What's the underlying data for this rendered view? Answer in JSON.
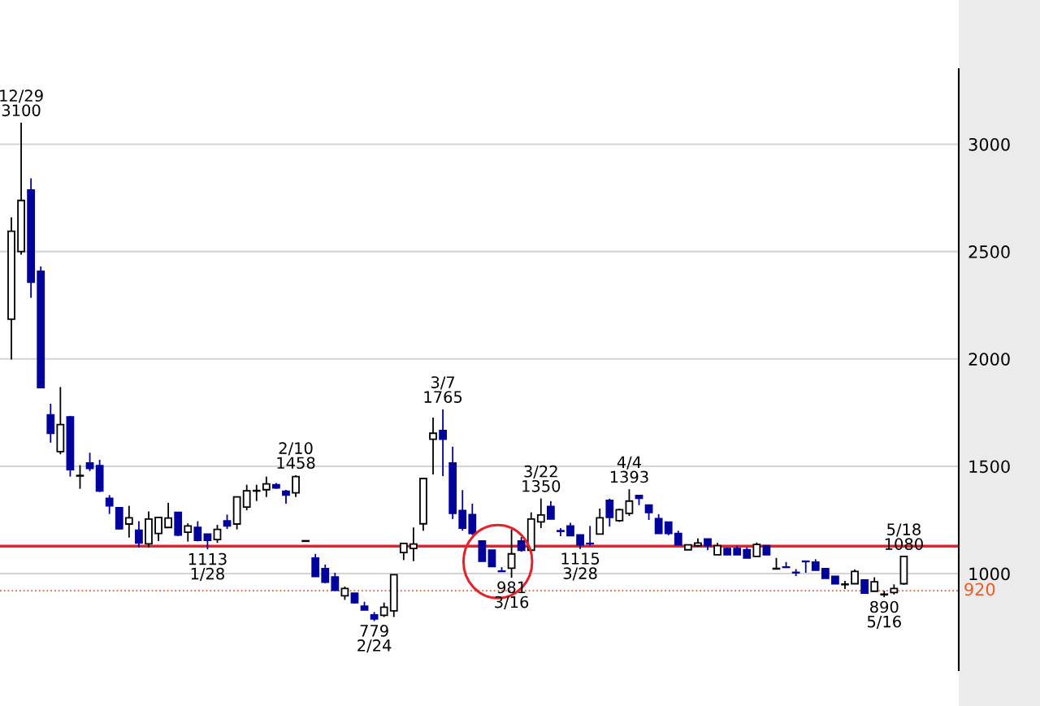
{
  "chart_data": {
    "type": "candlestick",
    "categories": [
      null,
      null,
      null,
      null,
      null,
      null,
      null,
      null,
      null,
      null,
      null,
      null,
      null,
      null,
      null,
      null,
      null,
      null,
      null,
      null,
      null,
      null,
      null,
      null,
      null,
      null,
      null,
      null,
      null,
      null,
      null,
      null,
      null,
      null,
      null,
      null,
      null,
      null,
      null,
      null,
      null,
      null,
      null,
      null,
      null,
      null,
      null,
      null,
      null,
      null,
      null,
      null,
      null,
      null,
      null,
      null,
      null,
      null,
      null,
      null,
      null,
      null,
      null,
      null,
      null,
      null,
      null,
      null,
      null,
      null,
      null,
      null,
      null,
      null,
      null,
      null,
      null,
      null,
      null,
      null,
      null,
      null,
      null,
      null,
      null,
      null,
      null,
      null,
      null,
      null,
      null,
      null
    ],
    "ohlc": [
      [
        2185,
        2659,
        1997,
        2595
      ],
      [
        2500,
        3100,
        2485,
        2738
      ],
      [
        2787,
        2841,
        2285,
        2357
      ],
      [
        2408,
        2431,
        1866,
        1866
      ],
      [
        1739,
        1791,
        1610,
        1654
      ],
      [
        1568,
        1869,
        1556,
        1694
      ],
      [
        1730,
        1735,
        1452,
        1484
      ],
      [
        1456,
        1505,
        1395,
        1456
      ],
      [
        1515,
        1563,
        1478,
        1490
      ],
      [
        1503,
        1530,
        1380,
        1385
      ],
      [
        1351,
        1366,
        1278,
        1316
      ],
      [
        1307,
        1307,
        1205,
        1209
      ],
      [
        1231,
        1316,
        1168,
        1260
      ],
      [
        1202,
        1244,
        1121,
        1143
      ],
      [
        1139,
        1290,
        1121,
        1254
      ],
      [
        1187,
        1262,
        1152,
        1262
      ],
      [
        1215,
        1330,
        1215,
        1259
      ],
      [
        1285,
        1285,
        1175,
        1180
      ],
      [
        1193,
        1234,
        1149,
        1222
      ],
      [
        1215,
        1244,
        1150,
        1155
      ],
      [
        1184,
        1184,
        1113,
        1155
      ],
      [
        1159,
        1227,
        1143,
        1206
      ],
      [
        1246,
        1275,
        1208,
        1222
      ],
      [
        1231,
        1357,
        1206,
        1357
      ],
      [
        1310,
        1414,
        1295,
        1386
      ],
      [
        1386,
        1414,
        1338,
        1386
      ],
      [
        1391,
        1452,
        1357,
        1418
      ],
      [
        1414,
        1422,
        1395,
        1399
      ],
      [
        1384,
        1390,
        1326,
        1366
      ],
      [
        1376,
        1458,
        1357,
        1452
      ],
      [
        1152,
        1152,
        1152,
        1152
      ],
      [
        1073,
        1092,
        987,
        987
      ],
      [
        1023,
        1042,
        955,
        960
      ],
      [
        985,
        1004,
        920,
        922
      ],
      [
        897,
        940,
        878,
        931
      ],
      [
        909,
        909,
        860,
        865
      ],
      [
        848,
        869,
        831,
        831
      ],
      [
        808,
        821,
        779,
        789
      ],
      [
        806,
        865,
        798,
        844
      ],
      [
        827,
        995,
        798,
        995
      ],
      [
        1098,
        1141,
        1063,
        1141
      ],
      [
        1117,
        1215,
        1058,
        1138
      ],
      [
        1232,
        1443,
        1200,
        1443
      ],
      [
        1626,
        1727,
        1462,
        1654
      ],
      [
        1667,
        1765,
        1454,
        1626
      ],
      [
        1515,
        1591,
        1254,
        1281
      ],
      [
        1294,
        1389,
        1200,
        1212
      ],
      [
        1275,
        1326,
        1180,
        1187
      ],
      [
        1152,
        1152,
        1058,
        1058
      ],
      [
        1109,
        1109,
        1033,
        1033
      ],
      [
        1012,
        1030,
        1008,
        1010
      ],
      [
        1025,
        1206,
        981,
        1092
      ],
      [
        1152,
        1171,
        1102,
        1109
      ],
      [
        1109,
        1285,
        1109,
        1254
      ],
      [
        1241,
        1350,
        1212,
        1273
      ],
      [
        1313,
        1338,
        1254,
        1254
      ],
      [
        1200,
        1212,
        1174,
        1197
      ],
      [
        1222,
        1237,
        1174,
        1177
      ],
      [
        1180,
        1180,
        1115,
        1134
      ],
      [
        1141,
        1222,
        1130,
        1139
      ],
      [
        1184,
        1303,
        1184,
        1260
      ],
      [
        1341,
        1349,
        1219,
        1262
      ],
      [
        1247,
        1303,
        1241,
        1298
      ],
      [
        1281,
        1393,
        1269,
        1338
      ],
      [
        1364,
        1364,
        1319,
        1351
      ],
      [
        1319,
        1319,
        1250,
        1285
      ],
      [
        1256,
        1277,
        1187,
        1187
      ],
      [
        1240,
        1240,
        1179,
        1187
      ],
      [
        1187,
        1200,
        1134,
        1134
      ],
      [
        1111,
        1134,
        1111,
        1134
      ],
      [
        1130,
        1164,
        1126,
        1143
      ],
      [
        1161,
        1161,
        1109,
        1130
      ],
      [
        1088,
        1143,
        1088,
        1130
      ],
      [
        1117,
        1120,
        1088,
        1088
      ],
      [
        1117,
        1130,
        1088,
        1088
      ],
      [
        1111,
        1122,
        1073,
        1073
      ],
      [
        1080,
        1145,
        1080,
        1136
      ],
      [
        1130,
        1130,
        1088,
        1088
      ],
      [
        1023,
        1073,
        1023,
        1023
      ],
      [
        1031,
        1054,
        1029,
        1029
      ],
      [
        1006,
        1021,
        989,
        1004
      ],
      [
        1058,
        1058,
        1004,
        1056
      ],
      [
        1054,
        1067,
        1016,
        1016
      ],
      [
        1023,
        1023,
        978,
        978
      ],
      [
        987,
        987,
        953,
        953
      ],
      [
        950,
        966,
        928,
        950
      ],
      [
        953,
        1019,
        953,
        1010
      ],
      [
        970,
        970,
        909,
        909
      ],
      [
        918,
        983,
        918,
        962
      ],
      [
        903,
        920,
        890,
        903
      ],
      [
        912,
        950,
        903,
        931
      ],
      [
        953,
        1080,
        948,
        1080
      ]
    ],
    "colors": [
      "#ffffff",
      "#ffffff",
      "#00009c",
      "#00009c",
      "#00009c",
      "#ffffff",
      "#00009c",
      "#000000",
      "#00009c",
      "#00009c",
      "#00009c",
      "#00009c",
      "#ffffff",
      "#00009c",
      "#ffffff",
      "#ffffff",
      "#ffffff",
      "#00009c",
      "#ffffff",
      "#00009c",
      "#00009c",
      "#ffffff",
      "#00009c",
      "#ffffff",
      "#ffffff",
      "#000000",
      "#ffffff",
      "#00009c",
      "#00009c",
      "#ffffff",
      "#000000",
      "#00009c",
      "#00009c",
      "#00009c",
      "#ffffff",
      "#00009c",
      "#00009c",
      "#00009c",
      "#ffffff",
      "#ffffff",
      "#ffffff",
      "#ffffff",
      "#ffffff",
      "#ffffff",
      "#00009c",
      "#00009c",
      "#00009c",
      "#00009c",
      "#00009c",
      "#00009c",
      "#00009c",
      "#ffffff",
      "#00009c",
      "#ffffff",
      "#ffffff",
      "#00009c",
      "#00009c",
      "#00009c",
      "#00009c",
      "#00009c",
      "#ffffff",
      "#00009c",
      "#ffffff",
      "#ffffff",
      "#00009c",
      "#00009c",
      "#00009c",
      "#00009c",
      "#00009c",
      "#ffffff",
      "#ffffff",
      "#00009c",
      "#ffffff",
      "#00009c",
      "#00009c",
      "#00009c",
      "#ffffff",
      "#00009c",
      "#000000",
      "#00009c",
      "#00009c",
      "#00009c",
      "#00009c",
      "#00009c",
      "#00009c",
      "#000000",
      "#ffffff",
      "#00009c",
      "#ffffff",
      "#000000",
      "#ffffff",
      "#ffffff"
    ],
    "ylim": [
      550,
      3350
    ],
    "yticks": [
      1000,
      1500,
      2000,
      2500,
      3000
    ],
    "grid": "y",
    "tick_labels": "y",
    "ref_lines": [
      {
        "axis": "y",
        "value": 920,
        "label": "920",
        "color": "#f05a23",
        "line_style": "dotted"
      },
      {
        "axis": "y",
        "value": 1128,
        "color": "#e8202a",
        "line_style": "solid"
      }
    ],
    "annotations": [
      {
        "text": "12/29\n3100",
        "y": 3100
      },
      {
        "text": "1113\n1/28",
        "y": 1113
      },
      {
        "text": "2/10\n1458",
        "y": 1458
      },
      {
        "text": "779\n2/24",
        "y": 779
      },
      {
        "text": "3/7\n1765",
        "y": 1765
      },
      {
        "text": "981\n3/16",
        "y": 981
      },
      {
        "text": "3/22\n1350",
        "y": 1350
      },
      {
        "text": "1115\n3/28",
        "y": 1115
      },
      {
        "text": "4/4\n1393",
        "y": 1393
      },
      {
        "text": "890\n5/16",
        "y": 890
      },
      {
        "text": "5/18\n1080",
        "y": 1080
      }
    ]
  }
}
